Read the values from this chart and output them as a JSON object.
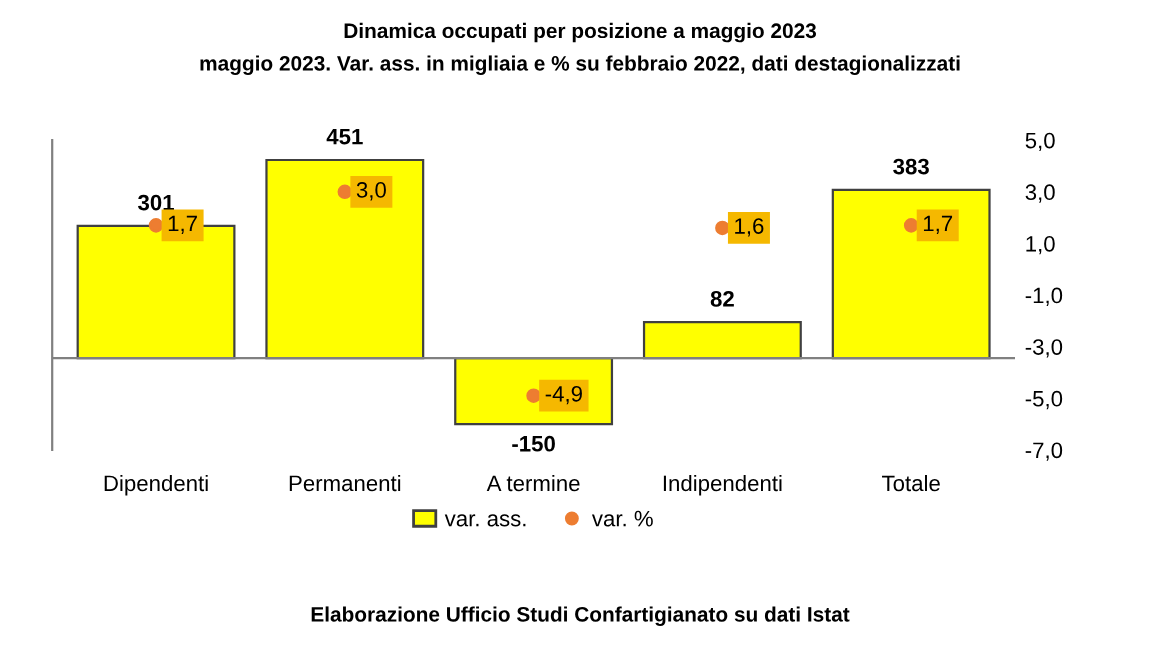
{
  "chart_data": {
    "type": "bar",
    "title": "Dinamica occupati per posizione a maggio 2023",
    "subtitle": "maggio 2023. Var. ass. in migliaia e % su febbraio 2022, dati destagionalizzati",
    "categories": [
      "Dipendenti",
      "Permanenti",
      "A termine",
      "Indipendenti",
      "Totale"
    ],
    "series": [
      {
        "name": "var. ass.",
        "color": "#ffff00",
        "values": [
          301,
          451,
          -150,
          82,
          383
        ],
        "value_labels": [
          "301",
          "451",
          "-150",
          "82",
          "383"
        ]
      },
      {
        "name": "var. %",
        "type": "scatter",
        "axis": "y2",
        "color": "#ed7d31",
        "values": [
          1.7,
          3.0,
          -4.9,
          1.6,
          1.7
        ],
        "value_labels": [
          "1,7",
          "3,0",
          "-4,9",
          "1,6",
          "1,7"
        ]
      }
    ],
    "y2lim": [
      -7,
      5
    ],
    "y2ticks": [
      {
        "value": 5,
        "label": "5,0"
      },
      {
        "value": 3,
        "label": "3,0"
      },
      {
        "value": 1,
        "label": "1,0"
      },
      {
        "value": -1,
        "label": "-1,0"
      },
      {
        "value": -3,
        "label": "-3,0"
      },
      {
        "value": -5,
        "label": "-5,0"
      },
      {
        "value": -7,
        "label": "-7,0"
      }
    ],
    "grid": false,
    "legend": "bottom",
    "marker": "circle",
    "annotations": [
      "Elaborazione Ufficio Studi Confartigianato su dati Istat"
    ]
  }
}
